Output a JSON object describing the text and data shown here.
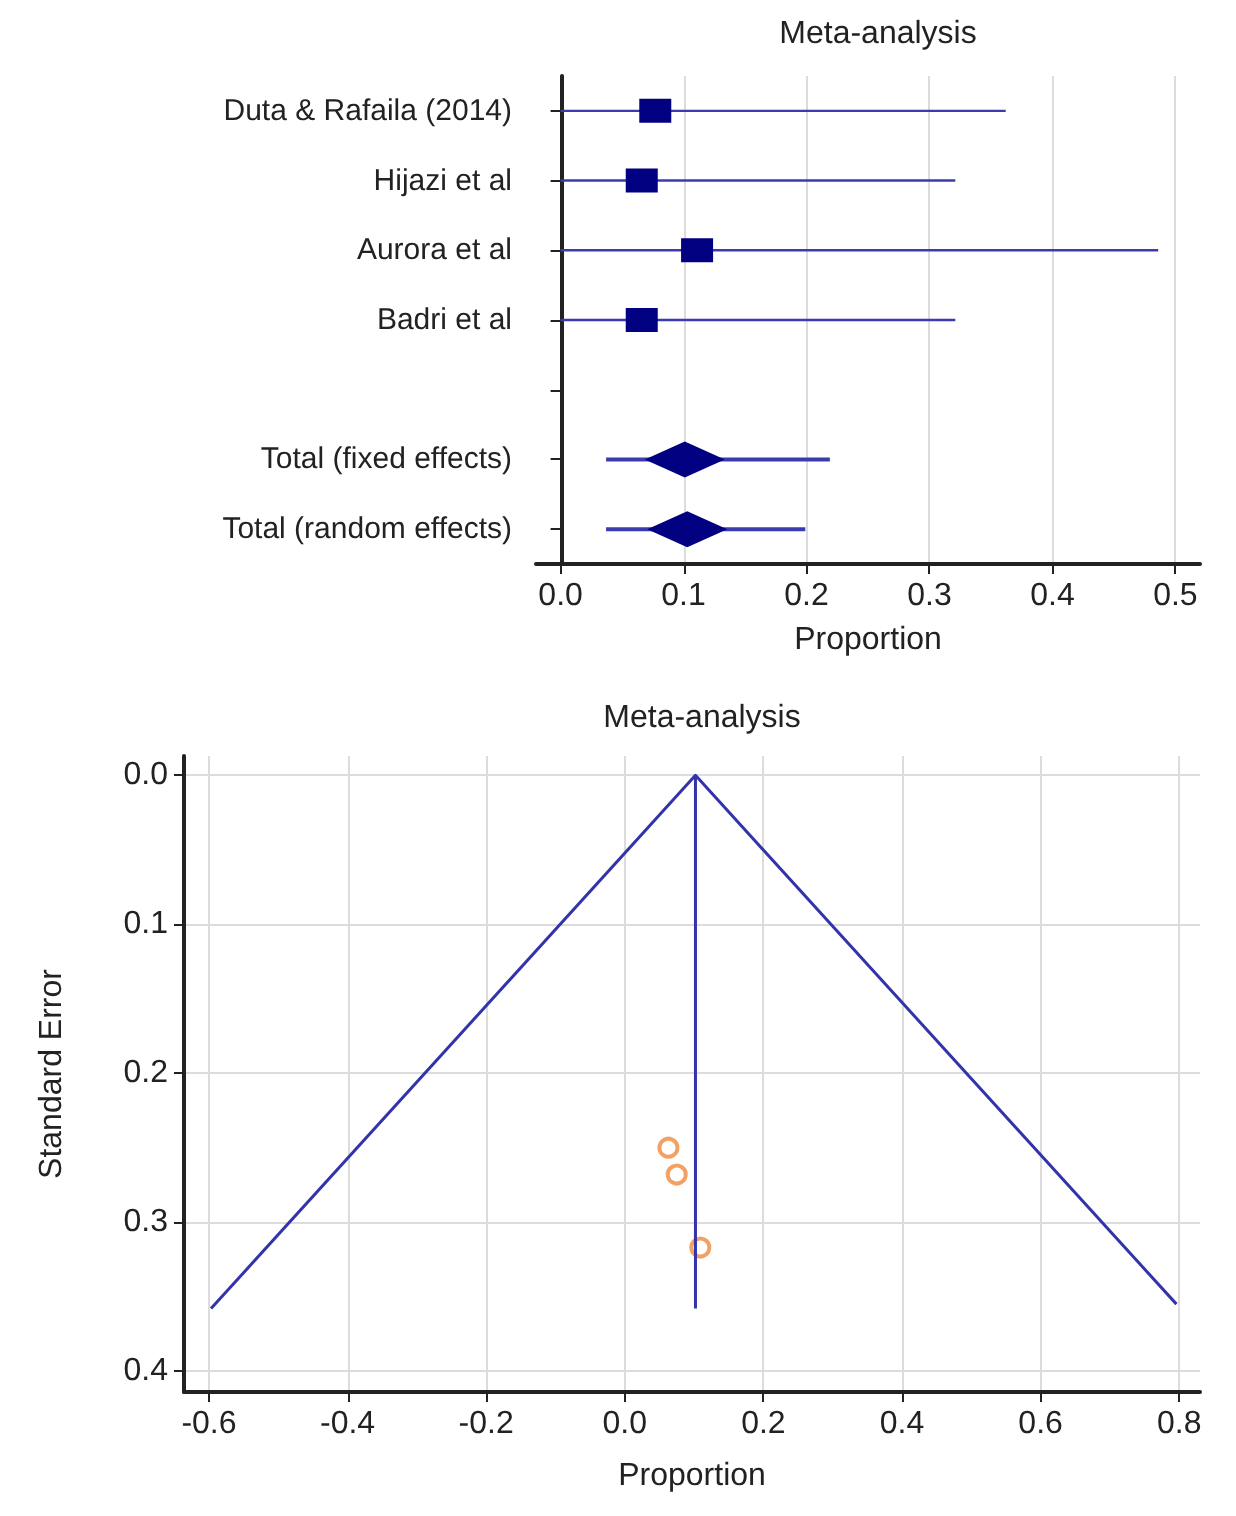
{
  "chart_data": [
    {
      "type": "scatter",
      "title": "Meta-analysis",
      "xlabel": "Proportion",
      "orientation": "horizontal",
      "categories": [
        "Duta & Rafaila (2014)",
        "Hijazi et al",
        "Aurora et al",
        "Badri et al",
        null,
        "Total (fixed effects)",
        "Total (random effects)"
      ],
      "series": [
        {
          "color": "#000080",
          "marker": "square",
          "values": [
            0.077,
            0.066,
            0.111,
            0.066,
            null,
            null,
            null
          ],
          "errors": [
            [
              0.0,
              0.362
            ],
            [
              0.0,
              0.321
            ],
            [
              0.0,
              0.486
            ],
            [
              0.0,
              0.321
            ],
            null,
            null,
            null
          ]
        },
        {
          "color": "#000080",
          "marker": "diamond",
          "values": [
            null,
            null,
            null,
            null,
            null,
            0.101,
            0.103
          ],
          "errors": [
            null,
            null,
            null,
            null,
            null,
            [
              0.037,
              0.219
            ],
            [
              0.037,
              0.199
            ]
          ]
        }
      ],
      "xlim": [
        -0.02,
        0.52
      ],
      "xticks": [
        {
          "value": 0,
          "label": "0.0"
        },
        0.1,
        0.2,
        0.3,
        0.4,
        0.5
      ],
      "grid": "x"
    },
    {
      "type": "scatter",
      "title": "Meta-analysis",
      "xlabel": "Proportion",
      "ylabel": "Standard Error",
      "series": [
        {
          "type": "line",
          "color": "#3333aa",
          "marker": "none",
          "x": [
            -0.597,
            0.102,
            0.796
          ],
          "values": [
            0.358,
            0.0,
            0.355
          ]
        },
        {
          "type": "line",
          "color": "#3333aa",
          "marker": "none",
          "x": [
            0.102,
            0.102
          ],
          "values": [
            0.0,
            0.358
          ]
        },
        {
          "type": "scatter",
          "color": "#f08a3c",
          "marker": "circle",
          "x": [
            0.063,
            0.075,
            0.109
          ],
          "values": [
            0.25,
            0.268,
            0.317
          ]
        }
      ],
      "xlim": [
        -0.636,
        0.83
      ],
      "xticks": [
        -0.6,
        -0.4,
        -0.2,
        {
          "value": 0,
          "label": "0.0"
        },
        0.2,
        0.4,
        0.6,
        0.8
      ],
      "ylim": [
        0.414,
        -0.013
      ],
      "yticks": [
        {
          "value": 0,
          "label": "0.0"
        },
        0.1,
        0.2,
        0.3,
        0.4
      ],
      "grid": true
    }
  ]
}
